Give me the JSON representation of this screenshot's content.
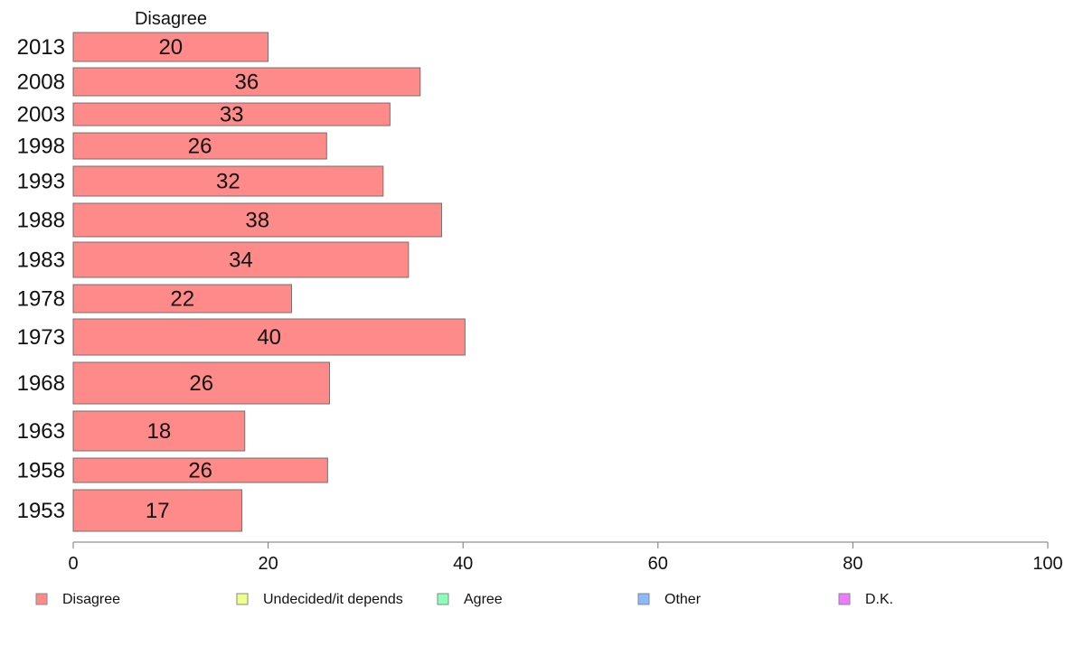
{
  "chart_data": {
    "type": "bar",
    "orientation": "horizontal",
    "column_header": "Disagree",
    "categories": [
      "2013",
      "2008",
      "2003",
      "1998",
      "1993",
      "1988",
      "1983",
      "1978",
      "1973",
      "1968",
      "1963",
      "1958",
      "1953"
    ],
    "series": [
      {
        "name": "Disagree",
        "color": "#ff8a8a",
        "values": [
          20,
          36,
          33,
          26,
          32,
          38,
          34,
          22,
          40,
          26,
          18,
          26,
          17
        ],
        "plotted": [
          20,
          35.6,
          32.5,
          26,
          31.8,
          37.8,
          34.4,
          22.4,
          40.2,
          26.3,
          17.6,
          26.1,
          17.3
        ]
      }
    ],
    "xlim": [
      0,
      100
    ],
    "xticks": [
      "0",
      "20",
      "40",
      "60",
      "80",
      "100"
    ],
    "grid": false,
    "legend_position": "bottom",
    "legend": [
      {
        "label": "Disagree",
        "color": "#ff8a8a"
      },
      {
        "label": "Undecided/it depends",
        "color": "#eeff8a"
      },
      {
        "label": "Agree",
        "color": "#8affb9"
      },
      {
        "label": "Other",
        "color": "#8ab9ff"
      },
      {
        "label": "D.K.",
        "color": "#ee7aff"
      }
    ]
  }
}
